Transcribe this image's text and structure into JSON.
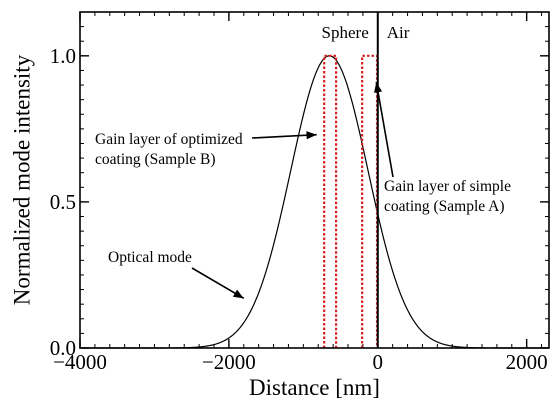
{
  "chart_data": {
    "type": "line",
    "xlabel": "Distance [nm]",
    "ylabel": "Normalized mode intensity",
    "xlim": [
      -4000,
      2300
    ],
    "ylim": [
      0,
      1.15
    ],
    "x_ticks": [
      -4000,
      -2000,
      0,
      2000
    ],
    "x_tick_labels": [
      "−4000",
      "−2000",
      "0",
      "2000"
    ],
    "y_ticks": [
      0,
      0.5,
      1.0
    ],
    "y_tick_labels": [
      "0.0",
      "0.5",
      "1.0"
    ],
    "x_minor_step": 200,
    "y_minor_step": 0.05,
    "grid": false,
    "series": [
      {
        "name": "Optical mode",
        "style": "solid",
        "color": "#000000",
        "model": "gaussian",
        "center": -650,
        "sigma": 520,
        "x_range": [
          -4000,
          2300
        ]
      },
      {
        "name": "Gain layer of optimized coating (Sample B)",
        "style": "dotted",
        "color": "#d62020",
        "x": [
          -720,
          -720,
          -560,
          -560
        ],
        "y": [
          0,
          1.0,
          1.0,
          0
        ]
      },
      {
        "name": "Gain layer of simple coating (Sample A)",
        "style": "dotted",
        "color": "#d62020",
        "x": [
          -210,
          -210,
          -10,
          -10
        ],
        "y": [
          0,
          1.0,
          1.0,
          0
        ]
      }
    ],
    "boundary": {
      "x": 0,
      "color": "#000000"
    },
    "regions": [
      {
        "label": "Sphere",
        "side": "left-of-boundary"
      },
      {
        "label": "Air",
        "side": "right-of-boundary"
      }
    ],
    "annotations": [
      {
        "lines": [
          "Gain layer of optimized",
          "coating (Sample B)"
        ],
        "arrow_to": [
          -820,
          0.73
        ]
      },
      {
        "lines": [
          "Gain layer of simple",
          "coating (Sample A)"
        ],
        "arrow_to": [
          -20,
          0.91
        ]
      },
      {
        "lines": [
          "Optical mode"
        ],
        "arrow_to": [
          -1800,
          0.17
        ]
      }
    ]
  }
}
